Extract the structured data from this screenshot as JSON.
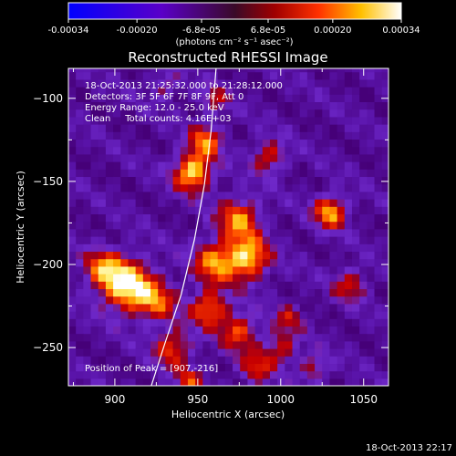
{
  "colorbar": {
    "tick_labels": [
      "-0.00034",
      "-0.00020",
      "-6.8e-05",
      "6.8e-05",
      "0.00020",
      "0.00034"
    ],
    "tick_values": [
      -0.00034,
      -0.0002,
      -6.8e-05,
      6.8e-05,
      0.0002,
      0.00034
    ],
    "range": [
      -0.00034,
      0.00034
    ],
    "colormap": "blue-purple-red-yellow-white",
    "unit_label": "(photons cm⁻² s⁻¹ asec⁻²)"
  },
  "chart_data": {
    "type": "heatmap",
    "title": "Reconstructed RHESSI Image",
    "xlabel": "Heliocentric X (arcsec)",
    "ylabel": "Heliocentric Y (arcsec)",
    "xlim": [
      872,
      1065
    ],
    "ylim": [
      -273,
      -82
    ],
    "x_ticks": [
      900,
      950,
      1000,
      1050
    ],
    "y_ticks": [
      -100,
      -150,
      -200,
      -250
    ],
    "annotations": [
      "18-Oct-2013 21:25:32.000 to 21:28:12.000",
      "Detectors: 3F 5F 6F 7F 8F 9F, Att 0",
      "Energy Range: 12.0 - 25.0 keV",
      "Clean     Total counts: 4.16E+03"
    ],
    "peak_label": "Position of Peak = [907,-216]",
    "peak": [
      907,
      -216
    ],
    "limb_curve": [
      [
        922,
        -273
      ],
      [
        930,
        -248
      ],
      [
        940,
        -218
      ],
      [
        948,
        -185
      ],
      [
        954,
        -152
      ],
      [
        958,
        -120
      ],
      [
        961,
        -82
      ]
    ],
    "sources": [
      {
        "x": 907,
        "y": -212,
        "amp": 1.0,
        "sigma": 11
      },
      {
        "x": 925,
        "y": -222,
        "amp": 0.55,
        "sigma": 9
      },
      {
        "x": 892,
        "y": -202,
        "amp": 0.55,
        "sigma": 8
      },
      {
        "x": 947,
        "y": -144,
        "amp": 0.95,
        "sigma": 8
      },
      {
        "x": 955,
        "y": -125,
        "amp": 0.65,
        "sigma": 7
      },
      {
        "x": 975,
        "y": -172,
        "amp": 0.7,
        "sigma": 9
      },
      {
        "x": 980,
        "y": -196,
        "amp": 0.9,
        "sigma": 9
      },
      {
        "x": 960,
        "y": -198,
        "amp": 0.7,
        "sigma": 9
      },
      {
        "x": 993,
        "y": -135,
        "amp": 0.55,
        "sigma": 7
      },
      {
        "x": 1030,
        "y": -168,
        "amp": 0.8,
        "sigma": 7
      },
      {
        "x": 1042,
        "y": -212,
        "amp": 0.5,
        "sigma": 7
      },
      {
        "x": 957,
        "y": -226,
        "amp": 0.7,
        "sigma": 8
      },
      {
        "x": 935,
        "y": -250,
        "amp": 0.6,
        "sigma": 8
      },
      {
        "x": 975,
        "y": -240,
        "amp": 0.6,
        "sigma": 8
      },
      {
        "x": 985,
        "y": -262,
        "amp": 0.5,
        "sigma": 7
      },
      {
        "x": 1000,
        "y": -250,
        "amp": 0.5,
        "sigma": 7
      },
      {
        "x": 1020,
        "y": -262,
        "amp": 0.45,
        "sigma": 6
      },
      {
        "x": 945,
        "y": -270,
        "amp": 0.5,
        "sigma": 6
      },
      {
        "x": 930,
        "y": -92,
        "amp": 0.35,
        "sigma": 6
      },
      {
        "x": 1005,
        "y": -232,
        "amp": 0.4,
        "sigma": 6
      },
      {
        "x": 960,
        "y": -100,
        "amp": 0.4,
        "sigma": 6
      }
    ]
  },
  "footer": {
    "timestamp": "18-Oct-2013 22:17"
  }
}
